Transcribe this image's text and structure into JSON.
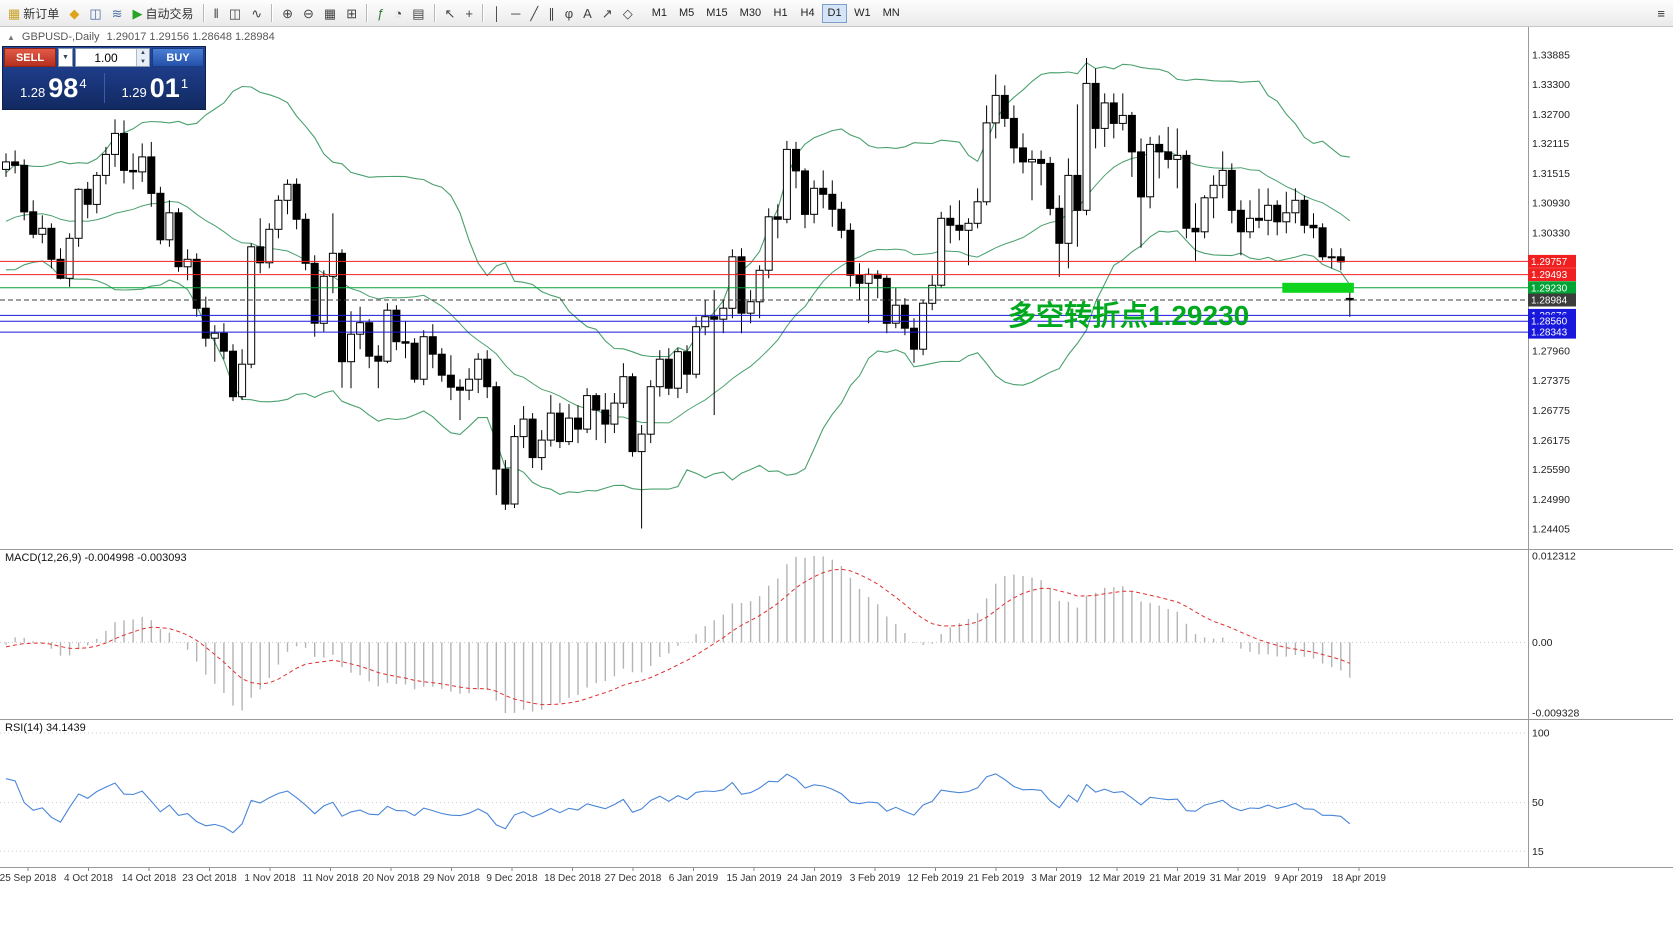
{
  "toolbar": {
    "new_order_label": "新订单",
    "auto_trading_label": "自动交易",
    "icons_pre": [
      {
        "name": "alerts-icon",
        "glyph": "◆",
        "color": "#dca416"
      },
      {
        "name": "chart-window-icon",
        "glyph": "◫",
        "color": "#4a6fa5"
      },
      {
        "name": "market-watch-icon",
        "glyph": "≋",
        "color": "#4a6fa5"
      }
    ],
    "icon_groups": [
      [
        {
          "name": "bar-chart-icon",
          "glyph": "‖",
          "color": "#444444"
        },
        {
          "name": "candlestick-chart-icon",
          "glyph": "◫",
          "color": "#444444"
        },
        {
          "name": "line-chart-icon",
          "glyph": "∿",
          "color": "#444444"
        }
      ],
      [
        {
          "name": "zoom-in-icon",
          "glyph": "⊕",
          "color": "#444444"
        },
        {
          "name": "zoom-out-icon",
          "glyph": "⊖",
          "color": "#444444"
        },
        {
          "name": "grid-icon",
          "glyph": "▦",
          "color": "#444444"
        },
        {
          "name": "tile-windows-icon",
          "glyph": "⊞",
          "color": "#444444"
        }
      ],
      [
        {
          "name": "indicators-icon",
          "glyph": "ƒ",
          "color": "#2e7d32"
        },
        {
          "name": "periods-icon",
          "glyph": "◔",
          "color": "#444444"
        },
        {
          "name": "templates-icon",
          "glyph": "▤",
          "color": "#444444"
        }
      ],
      [
        {
          "name": "cursor-icon",
          "glyph": "↖",
          "color": "#444444"
        },
        {
          "name": "crosshair-icon",
          "glyph": "+",
          "color": "#444444"
        }
      ],
      [
        {
          "name": "vertical-line-icon",
          "glyph": "│",
          "color": "#444444"
        },
        {
          "name": "horizontal-line-icon",
          "glyph": "─",
          "color": "#444444"
        },
        {
          "name": "trendline-icon",
          "glyph": "╱",
          "color": "#444444"
        },
        {
          "name": "channel-icon",
          "glyph": "∥",
          "color": "#444444"
        },
        {
          "name": "fibonacci-icon",
          "glyph": "φ",
          "color": "#444444"
        },
        {
          "name": "text-icon",
          "glyph": "A",
          "color": "#444444"
        },
        {
          "name": "arrows-icon",
          "glyph": "↗",
          "color": "#444444"
        },
        {
          "name": "shapes-icon",
          "glyph": "◇",
          "color": "#444444"
        }
      ]
    ],
    "timeframes": [
      "M1",
      "M5",
      "M15",
      "M30",
      "H1",
      "H4",
      "D1",
      "W1",
      "MN"
    ],
    "active_timeframe": "D1"
  },
  "chart": {
    "collapse_icon": "▲",
    "symbol_header": "GBPUSD-,Daily",
    "ohlc": "1.29017 1.29156 1.28648 1.28984",
    "annotation": "多空转折点1.29230",
    "axis_labels": [
      "1.33885",
      "1.33300",
      "1.32700",
      "1.32115",
      "1.31515",
      "1.30930",
      "1.30330",
      "1.27960",
      "1.27375",
      "1.26775",
      "1.26175",
      "1.25590",
      "1.24990",
      "1.24405"
    ],
    "price_lines": [
      {
        "label": "1.29757",
        "price": 1.29757,
        "color": "#f02020",
        "style": "solid"
      },
      {
        "label": "1.29493",
        "price": 1.29493,
        "color": "#f02020",
        "style": "solid"
      },
      {
        "label": "1.29230",
        "price": 1.2923,
        "color": "#00a435",
        "style": "solid"
      },
      {
        "label": "1.28984",
        "price": 1.28984,
        "color": "#3c3c3c",
        "style": "dashed"
      },
      {
        "label": "1.28676",
        "price": 1.28676,
        "color": "#1818dd",
        "style": "solid"
      },
      {
        "label": "1.28560",
        "price": 1.2856,
        "color": "#1818dd",
        "style": "solid"
      },
      {
        "label": "1.28343",
        "price": 1.28343,
        "color": "#1818dd",
        "style": "solid"
      }
    ],
    "highlight_zone": {
      "from_bar": 141,
      "to_bar": 148,
      "price_top": 1.2933,
      "price_bottom": 1.2913,
      "color": "#0fd41e"
    }
  },
  "trade_panel": {
    "sell_label": "SELL",
    "buy_label": "BUY",
    "lot": "1.00",
    "dropdown_icon": "▼",
    "up_icon": "▲",
    "down_icon": "▼",
    "sell_price": {
      "small": "1.28",
      "big": "98",
      "sup": "4"
    },
    "buy_price": {
      "small": "1.29",
      "big": "01",
      "sup": "1"
    }
  },
  "macd": {
    "label": "MACD(12,26,9) -0.004998 -0.003093",
    "axis_labels": [
      "0.012312",
      "0.00",
      "-0.009328"
    ]
  },
  "rsi": {
    "label": "RSI(14) 34.1439",
    "axis_labels": [
      "100",
      "50",
      "15"
    ]
  },
  "dates": [
    "25 Sep 2018",
    "4 Oct 2018",
    "14 Oct 2018",
    "23 Oct 2018",
    "1 Nov 2018",
    "11 Nov 2018",
    "20 Nov 2018",
    "29 Nov 2018",
    "9 Dec 2018",
    "18 Dec 2018",
    "27 Dec 2018",
    "6 Jan 2019",
    "15 Jan 2019",
    "24 Jan 2019",
    "3 Feb 2019",
    "12 Feb 2019",
    "21 Feb 2019",
    "3 Mar 2019",
    "12 Mar 2019",
    "21 Mar 2019",
    "31 Mar 2019",
    "9 Apr 2019",
    "18 Apr 2019"
  ],
  "colors": {
    "bollinger": "#4aa06e",
    "bull_candle": "#ffffff",
    "bear_candle": "#000000",
    "candle_outline": "#000000",
    "macd_histogram": "#b4b4b4",
    "macd_signal": "#e03030",
    "rsi_line": "#4a86d8",
    "annotation": "#00a91e",
    "panel_bg": "#15306e",
    "sell_button": "#cf3a2a",
    "buy_button": "#2b62c8"
  },
  "chart_data": {
    "type": "candlestick",
    "symbol": "GBPUSD",
    "timeframe": "Daily",
    "candles": [
      [
        1.316,
        1.3192,
        1.3145,
        1.3175
      ],
      [
        1.3175,
        1.3198,
        1.3152,
        1.3168
      ],
      [
        1.3168,
        1.318,
        1.3058,
        1.3075
      ],
      [
        1.3075,
        1.3098,
        1.3022,
        1.303
      ],
      [
        1.303,
        1.3068,
        1.3012,
        1.3042
      ],
      [
        1.3042,
        1.3052,
        1.2962,
        1.298
      ],
      [
        1.298,
        1.3002,
        1.294,
        1.2942
      ],
      [
        1.2942,
        1.3032,
        1.2925,
        1.3022
      ],
      [
        1.3022,
        1.3122,
        1.3005,
        1.312
      ],
      [
        1.312,
        1.3135,
        1.3062,
        1.309
      ],
      [
        1.309,
        1.3155,
        1.3072,
        1.3148
      ],
      [
        1.3148,
        1.3205,
        1.313,
        1.319
      ],
      [
        1.319,
        1.326,
        1.3165,
        1.3232
      ],
      [
        1.3232,
        1.3258,
        1.3132,
        1.3158
      ],
      [
        1.3158,
        1.3192,
        1.312,
        1.3155
      ],
      [
        1.3155,
        1.3212,
        1.3135,
        1.3185
      ],
      [
        1.3185,
        1.3215,
        1.3085,
        1.3112
      ],
      [
        1.3112,
        1.3125,
        1.301,
        1.3019
      ],
      [
        1.3019,
        1.3098,
        1.3005,
        1.3073
      ],
      [
        1.3073,
        1.3082,
        1.2955,
        1.2965
      ],
      [
        1.2965,
        1.3,
        1.2938,
        1.298
      ],
      [
        1.298,
        1.2992,
        1.2865,
        1.2882
      ],
      [
        1.2882,
        1.2905,
        1.2805,
        1.2822
      ],
      [
        1.2822,
        1.2848,
        1.2775,
        1.2832
      ],
      [
        1.2832,
        1.2852,
        1.278,
        1.2796
      ],
      [
        1.2796,
        1.281,
        1.2696,
        1.2705
      ],
      [
        1.2705,
        1.28,
        1.2698,
        1.277
      ],
      [
        1.277,
        1.3012,
        1.2762,
        1.3005
      ],
      [
        1.3005,
        1.3062,
        1.2952,
        1.2973
      ],
      [
        1.2973,
        1.3052,
        1.2962,
        1.304
      ],
      [
        1.304,
        1.3108,
        1.3022,
        1.3098
      ],
      [
        1.3098,
        1.314,
        1.307,
        1.313
      ],
      [
        1.313,
        1.3142,
        1.304,
        1.306
      ],
      [
        1.306,
        1.3072,
        1.2958,
        1.2972
      ],
      [
        1.2972,
        1.2988,
        1.2825,
        1.2852
      ],
      [
        1.2852,
        1.2958,
        1.2835,
        1.2946
      ],
      [
        1.2946,
        1.3072,
        1.2912,
        1.2992
      ],
      [
        1.2992,
        1.3,
        1.2723,
        1.2775
      ],
      [
        1.2775,
        1.2876,
        1.2722,
        1.283
      ],
      [
        1.283,
        1.2885,
        1.28,
        1.2853
      ],
      [
        1.2853,
        1.286,
        1.2762,
        1.2786
      ],
      [
        1.2786,
        1.2808,
        1.2722,
        1.2776
      ],
      [
        1.2776,
        1.2892,
        1.2772,
        1.2878
      ],
      [
        1.2878,
        1.2888,
        1.2798,
        1.2815
      ],
      [
        1.2815,
        1.2856,
        1.2782,
        1.2812
      ],
      [
        1.2812,
        1.2822,
        1.2733,
        1.274
      ],
      [
        1.274,
        1.2838,
        1.2728,
        1.2825
      ],
      [
        1.2825,
        1.285,
        1.2762,
        1.279
      ],
      [
        1.279,
        1.2802,
        1.2735,
        1.2748
      ],
      [
        1.2748,
        1.2788,
        1.2698,
        1.2724
      ],
      [
        1.2724,
        1.274,
        1.2658,
        1.2718
      ],
      [
        1.2718,
        1.2762,
        1.2698,
        1.274
      ],
      [
        1.274,
        1.2792,
        1.2712,
        1.278
      ],
      [
        1.278,
        1.2798,
        1.2702,
        1.2725
      ],
      [
        1.2725,
        1.2735,
        1.2508,
        1.256
      ],
      [
        1.256,
        1.2578,
        1.2478,
        1.249
      ],
      [
        1.249,
        1.2648,
        1.2482,
        1.2625
      ],
      [
        1.2625,
        1.2686,
        1.2602,
        1.266
      ],
      [
        1.266,
        1.2672,
        1.2562,
        1.2583
      ],
      [
        1.2583,
        1.2638,
        1.2558,
        1.2618
      ],
      [
        1.2618,
        1.2708,
        1.2605,
        1.2672
      ],
      [
        1.2672,
        1.2692,
        1.2602,
        1.2615
      ],
      [
        1.2615,
        1.269,
        1.2608,
        1.2662
      ],
      [
        1.2662,
        1.2688,
        1.2612,
        1.264
      ],
      [
        1.264,
        1.2722,
        1.2632,
        1.2707
      ],
      [
        1.2707,
        1.2712,
        1.2618,
        1.2678
      ],
      [
        1.2678,
        1.2712,
        1.2612,
        1.265
      ],
      [
        1.265,
        1.2712,
        1.2632,
        1.2692
      ],
      [
        1.2692,
        1.2772,
        1.2682,
        1.2745
      ],
      [
        1.2745,
        1.2752,
        1.2585,
        1.2595
      ],
      [
        1.2595,
        1.2648,
        1.2441,
        1.263
      ],
      [
        1.263,
        1.2738,
        1.2612,
        1.2725
      ],
      [
        1.2725,
        1.2798,
        1.2705,
        1.278
      ],
      [
        1.278,
        1.2802,
        1.2708,
        1.2722
      ],
      [
        1.2722,
        1.2802,
        1.2702,
        1.2795
      ],
      [
        1.2795,
        1.2808,
        1.2712,
        1.275
      ],
      [
        1.275,
        1.2865,
        1.2742,
        1.2845
      ],
      [
        1.2845,
        1.2898,
        1.2828,
        1.2865
      ],
      [
        1.2865,
        1.2918,
        1.2668,
        1.286
      ],
      [
        1.286,
        1.2898,
        1.2832,
        1.2882
      ],
      [
        1.2882,
        1.3,
        1.2862,
        1.2985
      ],
      [
        1.2985,
        1.3002,
        1.2832,
        1.2872
      ],
      [
        1.2872,
        1.2918,
        1.2852,
        1.2895
      ],
      [
        1.2895,
        1.2968,
        1.2862,
        1.2958
      ],
      [
        1.2958,
        1.3082,
        1.2942,
        1.3065
      ],
      [
        1.3065,
        1.309,
        1.3022,
        1.306
      ],
      [
        1.306,
        1.3217,
        1.3052,
        1.32
      ],
      [
        1.32,
        1.3215,
        1.3122,
        1.3157
      ],
      [
        1.3157,
        1.3162,
        1.3042,
        1.307
      ],
      [
        1.307,
        1.3138,
        1.3052,
        1.3122
      ],
      [
        1.3122,
        1.3158,
        1.3082,
        1.311
      ],
      [
        1.311,
        1.3138,
        1.3045,
        1.308
      ],
      [
        1.308,
        1.3095,
        1.3022,
        1.3038
      ],
      [
        1.3038,
        1.3052,
        1.2925,
        1.2948
      ],
      [
        1.2948,
        1.2972,
        1.2898,
        1.2932
      ],
      [
        1.2932,
        1.2962,
        1.2852,
        1.295
      ],
      [
        1.295,
        1.2958,
        1.2902,
        1.2942
      ],
      [
        1.2942,
        1.2948,
        1.2832,
        1.2852
      ],
      [
        1.2852,
        1.2922,
        1.2842,
        1.2888
      ],
      [
        1.2888,
        1.2902,
        1.2828,
        1.2842
      ],
      [
        1.2842,
        1.2862,
        1.2773,
        1.28
      ],
      [
        1.28,
        1.2898,
        1.2788,
        1.2892
      ],
      [
        1.2892,
        1.2948,
        1.2878,
        1.2928
      ],
      [
        1.2928,
        1.3075,
        1.2922,
        1.3062
      ],
      [
        1.3062,
        1.3088,
        1.3012,
        1.3048
      ],
      [
        1.3048,
        1.3098,
        1.3018,
        1.3038
      ],
      [
        1.3038,
        1.3062,
        1.2968,
        1.3052
      ],
      [
        1.3052,
        1.3122,
        1.3042,
        1.3095
      ],
      [
        1.3095,
        1.3288,
        1.3088,
        1.3253
      ],
      [
        1.3253,
        1.335,
        1.3222,
        1.3308
      ],
      [
        1.3308,
        1.3328,
        1.3245,
        1.3262
      ],
      [
        1.3262,
        1.3288,
        1.3172,
        1.3203
      ],
      [
        1.3203,
        1.3232,
        1.3152,
        1.3175
      ],
      [
        1.3175,
        1.3198,
        1.3098,
        1.318
      ],
      [
        1.318,
        1.3198,
        1.3128,
        1.3172
      ],
      [
        1.3172,
        1.3185,
        1.3068,
        1.3082
      ],
      [
        1.3082,
        1.3108,
        1.2945,
        1.3012
      ],
      [
        1.3012,
        1.3182,
        1.2962,
        1.3148
      ],
      [
        1.3148,
        1.329,
        1.3005,
        1.3078
      ],
      [
        1.3078,
        1.3383,
        1.3068,
        1.3332
      ],
      [
        1.3332,
        1.3362,
        1.3202,
        1.3242
      ],
      [
        1.3242,
        1.3312,
        1.3205,
        1.3293
      ],
      [
        1.3293,
        1.3312,
        1.3222,
        1.3252
      ],
      [
        1.3252,
        1.3312,
        1.3238,
        1.3268
      ],
      [
        1.3268,
        1.3275,
        1.3145,
        1.3195
      ],
      [
        1.3195,
        1.3222,
        1.3003,
        1.3105
      ],
      [
        1.3105,
        1.3225,
        1.3082,
        1.321
      ],
      [
        1.321,
        1.3228,
        1.3142,
        1.3195
      ],
      [
        1.3195,
        1.3245,
        1.3162,
        1.318
      ],
      [
        1.318,
        1.3242,
        1.3122,
        1.3188
      ],
      [
        1.3188,
        1.3198,
        1.3022,
        1.3042
      ],
      [
        1.3042,
        1.3092,
        1.2977,
        1.3035
      ],
      [
        1.3035,
        1.3108,
        1.3022,
        1.3103
      ],
      [
        1.3103,
        1.3148,
        1.3062,
        1.3128
      ],
      [
        1.3128,
        1.3196,
        1.3102,
        1.3158
      ],
      [
        1.3158,
        1.3172,
        1.3052,
        1.3078
      ],
      [
        1.3078,
        1.3098,
        1.2988,
        1.3035
      ],
      [
        1.3035,
        1.3098,
        1.3022,
        1.3062
      ],
      [
        1.3062,
        1.3121,
        1.3042,
        1.3058
      ],
      [
        1.3058,
        1.3122,
        1.3028,
        1.3088
      ],
      [
        1.3088,
        1.3098,
        1.3028,
        1.3055
      ],
      [
        1.3055,
        1.3115,
        1.3032,
        1.3073
      ],
      [
        1.3073,
        1.3122,
        1.3052,
        1.3098
      ],
      [
        1.3098,
        1.3108,
        1.3032,
        1.3048
      ],
      [
        1.3048,
        1.3072,
        1.3022,
        1.3043
      ],
      [
        1.3043,
        1.3052,
        1.2978,
        1.2985
      ],
      [
        1.2985,
        1.3002,
        1.2962,
        1.2985
      ],
      [
        1.2985,
        1.3002,
        1.2958,
        1.2975
      ],
      [
        1.29017,
        1.29156,
        1.28648,
        1.28984
      ]
    ]
  }
}
